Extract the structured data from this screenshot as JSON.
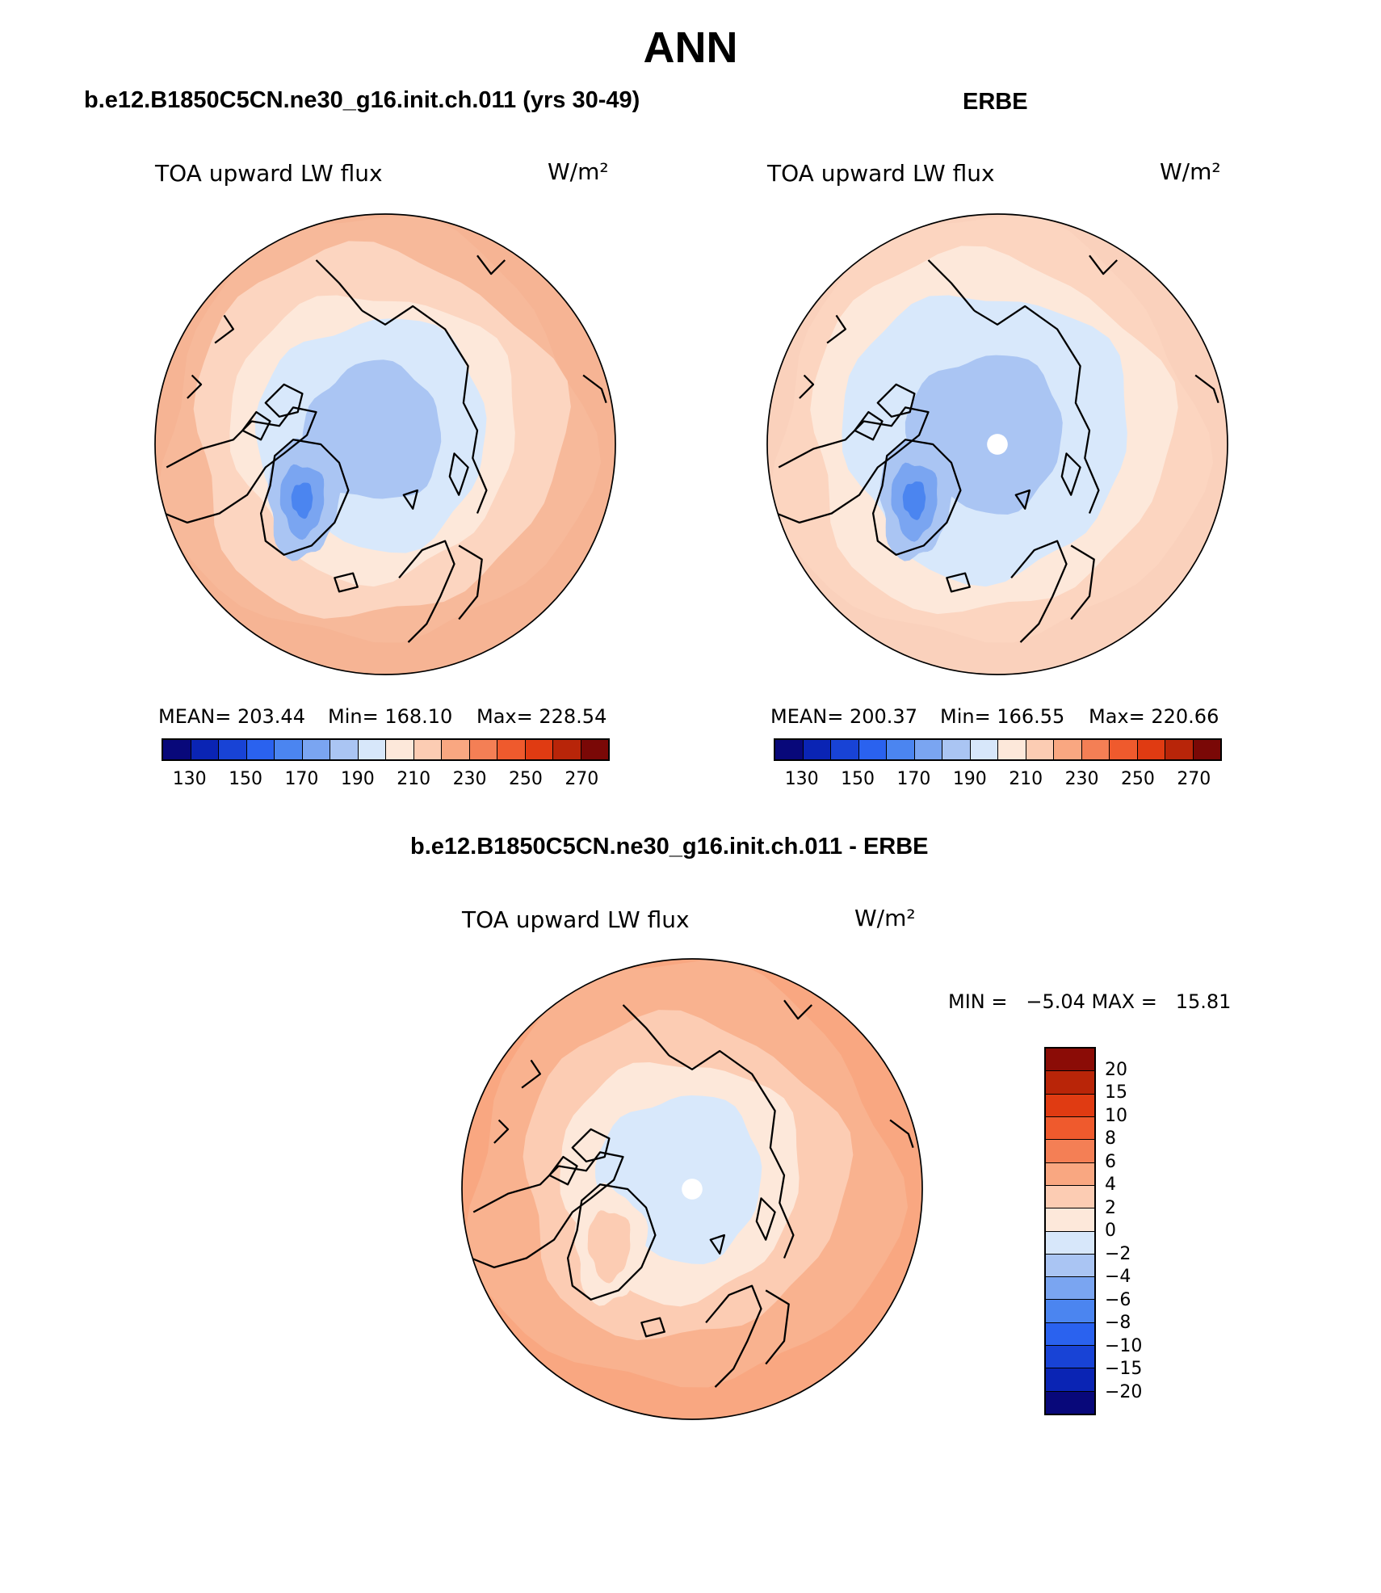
{
  "figure": {
    "title": "ANN"
  },
  "panels": {
    "model": {
      "header": "b.e12.B1850C5CN.ne30_g16.init.ch.011 (yrs 30-49)",
      "variable": "TOA upward LW flux",
      "units": "W/m²",
      "stats": {
        "mean": "MEAN= 203.44",
        "min": "Min= 168.10",
        "max": "Max= 228.54"
      }
    },
    "obs": {
      "header": "ERBE",
      "variable": "TOA upward LW flux",
      "units": "W/m²",
      "stats": {
        "mean": "MEAN= 200.37",
        "min": "Min= 166.55",
        "max": "Max= 220.66"
      }
    },
    "diff": {
      "header": "b.e12.B1850C5CN.ne30_g16.init.ch.011 - ERBE",
      "variable": "TOA upward LW flux",
      "units": "W/m²",
      "stats": {
        "minmax": "MIN =   −5.04 MAX =   15.81"
      }
    }
  },
  "colorbars": {
    "abs": {
      "colors": [
        "#08087a",
        "#0a24b4",
        "#1843d6",
        "#2a62ef",
        "#4b85f0",
        "#7aa5f1",
        "#aac5f3",
        "#d7e7fa",
        "#fde8da",
        "#fcccb3",
        "#f9a781",
        "#f47f55",
        "#ef5a2d",
        "#e03b12",
        "#b82509",
        "#7a0806"
      ],
      "tick_labels": [
        "130",
        "150",
        "170",
        "190",
        "210",
        "230",
        "250",
        "270"
      ]
    },
    "diff": {
      "colors_top_to_bottom": [
        "#8b0c06",
        "#b92508",
        "#e03b12",
        "#ef5a2d",
        "#f47f55",
        "#f9a781",
        "#fcccb3",
        "#fde8da",
        "#d7e7fa",
        "#aac5f3",
        "#7aa5f1",
        "#4b85f0",
        "#2a62ef",
        "#1843d6",
        "#0a24b4",
        "#08087a"
      ],
      "tick_labels": [
        "20",
        "15",
        "10",
        "8",
        "6",
        "4",
        "2",
        "0",
        "−2",
        "−4",
        "−6",
        "−8",
        "−10",
        "−15",
        "−20"
      ]
    }
  },
  "maps": {
    "model": {
      "ocean_color": "#f6b494",
      "rings": [
        {
          "r": 0.92,
          "color": "#f7b99a"
        },
        {
          "r": 0.8,
          "color": "#fcd5c0"
        },
        {
          "r": 0.62,
          "color": "#fde8da"
        },
        {
          "r": 0.5,
          "color": "#d8e8fb"
        },
        {
          "r": 0.3,
          "color": "#aac5f3"
        }
      ],
      "greenland": [
        {
          "color": "#aac5f3",
          "s": 1.0
        },
        {
          "color": "#7aa5f1",
          "s": 0.62
        },
        {
          "color": "#4b85f0",
          "s": 0.3
        }
      ],
      "pole_hole": false
    },
    "obs": {
      "ocean_color": "#fad1bc",
      "rings": [
        {
          "r": 0.92,
          "color": "#fcd5c0"
        },
        {
          "r": 0.78,
          "color": "#fde8da"
        },
        {
          "r": 0.62,
          "color": "#d8e8fb"
        },
        {
          "r": 0.34,
          "color": "#aac5f3"
        }
      ],
      "greenland": [
        {
          "color": "#aac5f3",
          "s": 1.0
        },
        {
          "color": "#7aa5f1",
          "s": 0.65
        },
        {
          "color": "#4b85f0",
          "s": 0.32
        }
      ],
      "pole_hole": true
    },
    "diff": {
      "ocean_color": "#f9a781",
      "rings": [
        {
          "r": 0.92,
          "color": "#f9b28f"
        },
        {
          "r": 0.7,
          "color": "#fcccb3"
        },
        {
          "r": 0.52,
          "color": "#fde8da"
        },
        {
          "r": 0.36,
          "color": "#d8e8fb"
        }
      ],
      "greenland": [
        {
          "color": "#fde8da",
          "s": 1.0
        },
        {
          "color": "#fcccb3",
          "s": 0.6
        }
      ],
      "pole_hole": true
    }
  }
}
